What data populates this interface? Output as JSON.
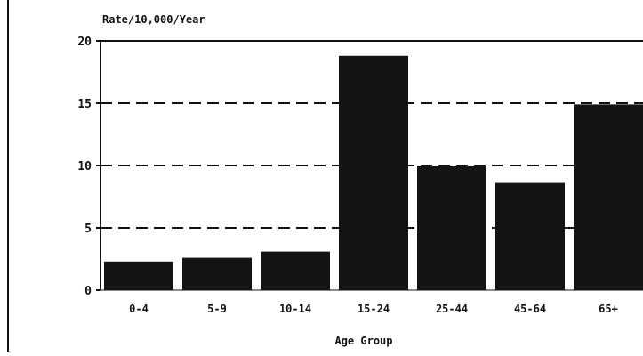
{
  "chart_data": {
    "type": "bar",
    "title": "",
    "ylabel": "Rate/10,000/Year",
    "xlabel": "Age Group",
    "categories": [
      "0-4",
      "5-9",
      "10-14",
      "15-24",
      "25-44",
      "45-64",
      "65+"
    ],
    "values": [
      2.3,
      2.6,
      3.1,
      18.8,
      10.0,
      8.6,
      14.9
    ],
    "ylim": [
      0,
      20
    ],
    "yticks": [
      "0",
      "5",
      "10",
      "15",
      "20"
    ],
    "grid": "dashed horizontal at 5, 10, 15",
    "legend": "none",
    "colors": {
      "bar": "#141414",
      "grid": "#111111",
      "axis": "#111111"
    }
  }
}
